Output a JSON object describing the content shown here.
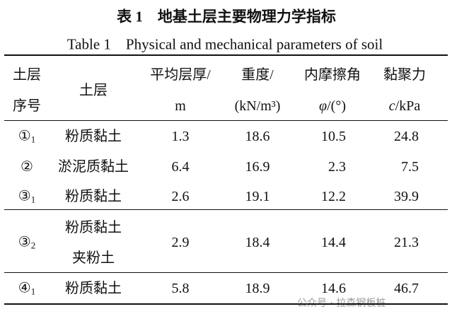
{
  "caption": {
    "cn": "表 1　地基土层主要物理力学指标",
    "en": "Table 1　Physical and mechanical parameters of soil"
  },
  "header": [
    {
      "line1": "土层",
      "line2": "序号"
    },
    {
      "line1": "土层"
    },
    {
      "line1": "平均层厚/",
      "line2": "m"
    },
    {
      "line1": "重度/",
      "line2": "(kN/m³)"
    },
    {
      "line1": "内摩擦角",
      "symbol": "φ",
      "unit": "/(°)"
    },
    {
      "line1": "黏聚力",
      "symbol": "c",
      "unit": "/kPa"
    }
  ],
  "rows": [
    {
      "id": "①",
      "sub": "1",
      "soil": [
        "粉质黏土"
      ],
      "thickness": "1.3",
      "weight": "18.6",
      "friction": "10.5",
      "cohesion": "24.8"
    },
    {
      "id": "②",
      "soil": [
        "淤泥质黏土"
      ],
      "thickness": "6.4",
      "weight": "16.9",
      "friction": "2.3",
      "cohesion": "7.5"
    },
    {
      "id": "③",
      "sub": "1",
      "soil": [
        "粉质黏土"
      ],
      "thickness": "2.6",
      "weight": "19.1",
      "friction": "12.2",
      "cohesion": "39.9"
    },
    {
      "id": "③",
      "sub": "2",
      "soil": [
        "粉质黏土",
        "夹粉土"
      ],
      "thickness": "2.9",
      "weight": "18.4",
      "friction": "14.4",
      "cohesion": "21.3"
    },
    {
      "id": "④",
      "sub": "1",
      "soil": [
        "粉质黏土"
      ],
      "thickness": "5.8",
      "weight": "18.9",
      "friction": "14.6",
      "cohesion": "46.7"
    }
  ],
  "watermark": "公众号 · 拉森钢板桩"
}
